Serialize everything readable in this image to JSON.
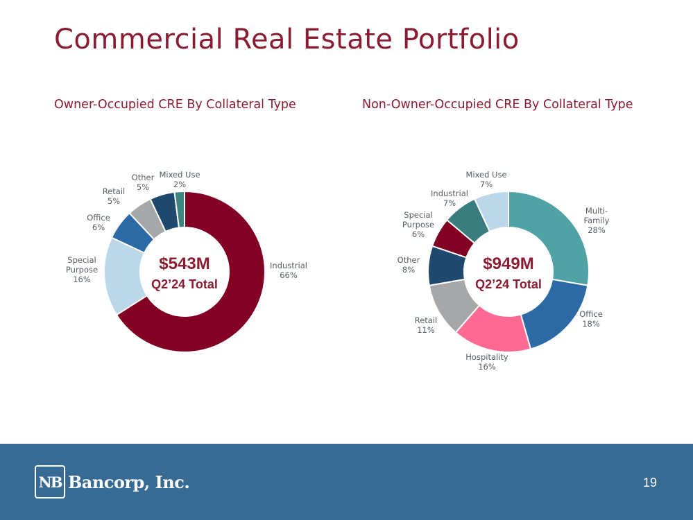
{
  "slide": {
    "title": "Commercial Real Estate Portfolio",
    "page_number": "19"
  },
  "footer": {
    "logo_mark": "NB",
    "logo_text": "Bancorp, Inc.",
    "background_color": "#376b93"
  },
  "chart_data": [
    {
      "type": "pie",
      "donut": true,
      "title": "Owner-Occupied CRE By Collateral Type",
      "center_text": [
        "$543M",
        "Q2’24 Total"
      ],
      "unit": "%",
      "slices": [
        {
          "label": "Industrial",
          "value": 66,
          "color": "#820024"
        },
        {
          "label": "Special Purpose",
          "value": 16,
          "color": "#bcd7ea"
        },
        {
          "label": "Office",
          "value": 6,
          "color": "#2c6aa5"
        },
        {
          "label": "Retail",
          "value": 5,
          "color": "#a6a7a9"
        },
        {
          "label": "Other",
          "value": 5,
          "color": "#1f4a6d"
        },
        {
          "label": "Mixed Use",
          "value": 2,
          "color": "#3e8481"
        }
      ]
    },
    {
      "type": "pie",
      "donut": true,
      "title": "Non-Owner-Occupied CRE By Collateral Type",
      "center_text": [
        "$949M",
        "Q2’24 Total"
      ],
      "unit": "%",
      "slices": [
        {
          "label": "Multi-Family",
          "value": 28,
          "color": "#4fa2a6"
        },
        {
          "label": "Office",
          "value": 18,
          "color": "#2c6aa5"
        },
        {
          "label": "Hospitality",
          "value": 16,
          "color": "#ff6a94"
        },
        {
          "label": "Retail",
          "value": 11,
          "color": "#a6a7a9"
        },
        {
          "label": "Other",
          "value": 8,
          "color": "#1f4a6d"
        },
        {
          "label": "Special Purpose",
          "value": 6,
          "color": "#820024"
        },
        {
          "label": "Industrial",
          "value": 7,
          "color": "#3a7d7e"
        },
        {
          "label": "Mixed Use",
          "value": 7,
          "color": "#bcd7ea"
        }
      ]
    }
  ]
}
